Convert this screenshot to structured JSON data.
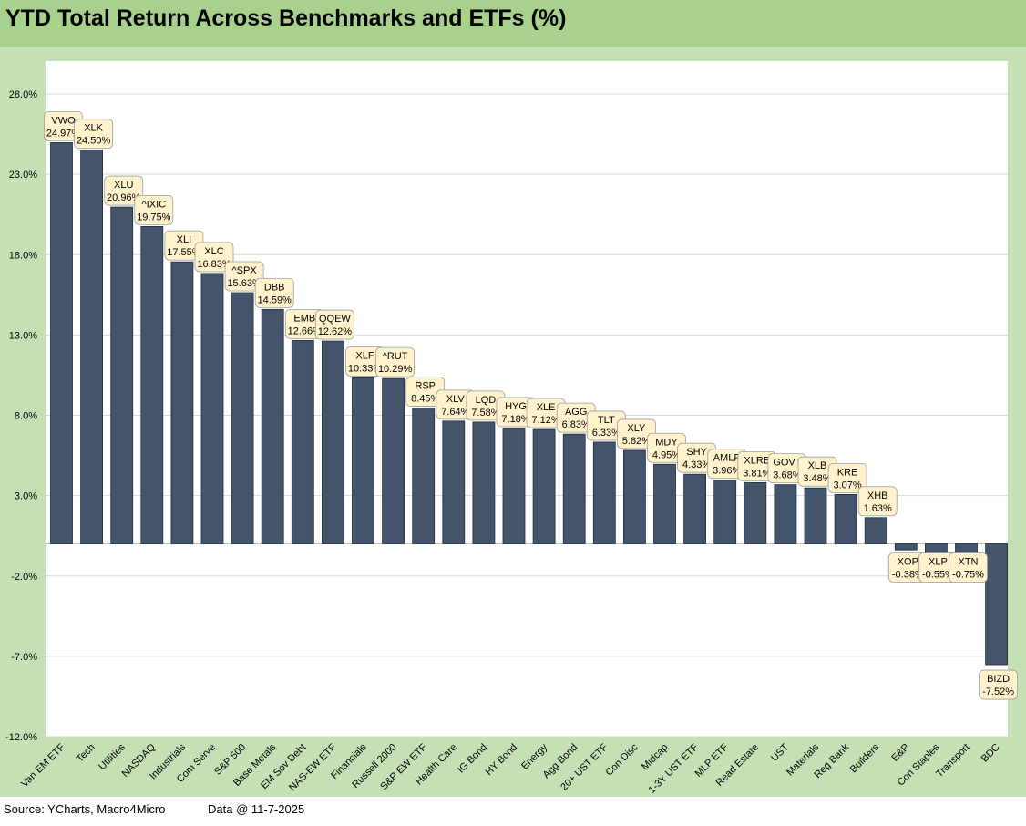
{
  "title": "YTD Total Return Across Benchmarks and ETFs (%)",
  "footer": {
    "source": "Source: YCharts, Macro4Micro",
    "data_date": "Data @ 11-7-2025"
  },
  "colors": {
    "bar": "#44546a",
    "label_bg": "#fff2cc",
    "header_bg": "#a9d18e",
    "chart_bg": "#c5e0b4"
  },
  "chart_data": {
    "type": "bar",
    "title": "YTD Total Return Across Benchmarks and ETFs (%)",
    "xlabel": "",
    "ylabel": "",
    "ylim": [
      -12,
      28
    ],
    "yticks": [
      28,
      23,
      18,
      13,
      8,
      3,
      -2,
      -7,
      -12
    ],
    "ytick_labels": [
      "28.0%",
      "23.0%",
      "18.0%",
      "13.0%",
      "8.0%",
      "3.0%",
      "-2.0%",
      "-7.0%",
      "-12.0%"
    ],
    "grid": true,
    "categories": [
      "Van EM ETF",
      "Tech",
      "Utilities",
      "NASDAQ",
      "Industrials",
      "Com Serve",
      "S&P 500",
      "Base Metals",
      "EM Sov Debt",
      "NAS-EW ETF",
      "Financials",
      "Russell 2000",
      "S&P EW ETF",
      "Health Care",
      "IG Bond",
      "HY Bond",
      "Energy",
      "Agg Bond",
      "20+ UST ETF",
      "Con Disc",
      "Midcap",
      "1-3Y UST ETF",
      "MLP ETF",
      "Read Estate",
      "UST",
      "Materials",
      "Reg Bank",
      "Builders",
      "E&P",
      "Con Staples",
      "Transport",
      "BDC"
    ],
    "tickers": [
      "VWO",
      "XLK",
      "XLU",
      "^IXIC",
      "XLI",
      "XLC",
      "^SPX",
      "DBB",
      "EMB",
      "QQEW",
      "XLF",
      "^RUT",
      "RSP",
      "XLV",
      "LQD",
      "HYG",
      "XLE",
      "AGG",
      "TLT",
      "XLY",
      "MDY",
      "SHY",
      "AMLP",
      "XLRE",
      "GOVT",
      "XLB",
      "KRE",
      "XHB",
      "XOP",
      "XLP",
      "XTN",
      "BIZD"
    ],
    "values": [
      24.97,
      24.5,
      20.96,
      19.75,
      17.55,
      16.83,
      15.63,
      14.59,
      12.66,
      12.62,
      10.33,
      10.29,
      8.45,
      7.64,
      7.58,
      7.18,
      7.12,
      6.83,
      6.33,
      5.82,
      4.95,
      4.33,
      3.96,
      3.81,
      3.68,
      3.48,
      3.07,
      1.63,
      -0.38,
      -0.55,
      -0.75,
      -7.52
    ],
    "value_labels": [
      "24.97%",
      "24.50%",
      "20.96%",
      "19.75%",
      "17.55%",
      "16.83%",
      "15.63%",
      "14.59%",
      "12.66%",
      "12.62%",
      "10.33%",
      "10.29%",
      "8.45%",
      "7.64%",
      "7.58%",
      "7.18%",
      "7.12%",
      "6.83%",
      "6.33%",
      "5.82%",
      "4.95%",
      "4.33%",
      "3.96%",
      "3.81%",
      "3.68%",
      "3.48%",
      "3.07%",
      "1.63%",
      "-0.38%",
      "-0.55%",
      "-0.75%",
      "-7.52%"
    ]
  }
}
